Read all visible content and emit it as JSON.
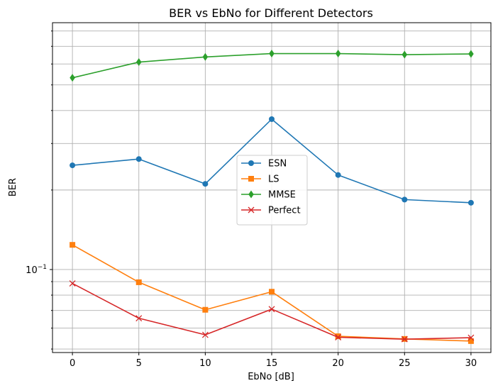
{
  "chart_data": {
    "type": "line",
    "title": "BER vs EbNo for Different Detectors",
    "xlabel": "EbNo [dB]",
    "ylabel": "BER",
    "yscale": "log",
    "x": [
      0,
      5,
      10,
      15,
      20,
      25,
      30
    ],
    "xlim": [
      -1.5,
      31.5
    ],
    "ylim": [
      0.0485,
      0.86
    ],
    "xticks": [
      "0",
      "5",
      "10",
      "15",
      "20",
      "25",
      "30"
    ],
    "ytick_major": "10^{-1}",
    "grid": true,
    "legend": "center",
    "series": [
      {
        "name": "ESN",
        "color": "#1f77b4",
        "marker": "circle",
        "values": [
          0.248,
          0.262,
          0.211,
          0.371,
          0.228,
          0.184,
          0.179
        ]
      },
      {
        "name": "LS",
        "color": "#ff7f0e",
        "marker": "square",
        "values": [
          0.124,
          0.0895,
          0.0704,
          0.0824,
          0.0559,
          0.0546,
          0.0536
        ]
      },
      {
        "name": "MMSE",
        "color": "#2ca02c",
        "marker": "diamond",
        "values": [
          0.532,
          0.61,
          0.638,
          0.657,
          0.657,
          0.651,
          0.655
        ]
      },
      {
        "name": "Perfect",
        "color": "#d62728",
        "marker": "x",
        "values": [
          0.0886,
          0.0654,
          0.0566,
          0.0708,
          0.0554,
          0.0545,
          0.0552
        ]
      }
    ]
  }
}
